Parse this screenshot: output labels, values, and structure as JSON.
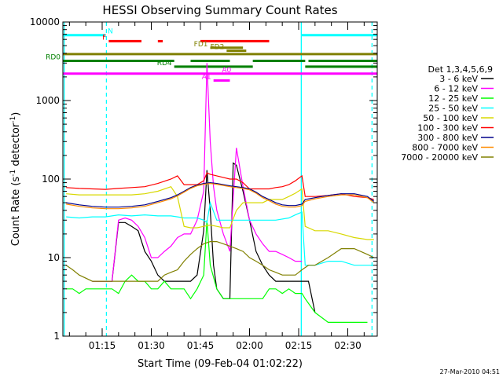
{
  "chart_data": {
    "type": "line",
    "title": "HESSI Observing Summary Count Rates",
    "xlabel": "Start Time (09-Feb-04 01:02:22)",
    "ylabel_main": "Count Rate (s",
    "ylabel_sup1": "-1",
    "ylabel_mid": " detector",
    "ylabel_sup2": "-1",
    "ylabel_end": ")",
    "yscale": "log",
    "ylim": [
      1,
      10000
    ],
    "xlim_minutes": [
      63.0,
      159.0
    ],
    "y_ticks": [
      {
        "value": 1,
        "label": "1"
      },
      {
        "value": 10,
        "label": "10"
      },
      {
        "value": 100,
        "label": "100"
      },
      {
        "value": 1000,
        "label": "1000"
      },
      {
        "value": 10000,
        "label": "10000"
      }
    ],
    "x_ticks": [
      {
        "minute": 75,
        "label": "01:15"
      },
      {
        "minute": 90,
        "label": "01:30"
      },
      {
        "minute": 105,
        "label": "01:45"
      },
      {
        "minute": 120,
        "label": "02:00"
      },
      {
        "minute": 135,
        "label": "02:15"
      },
      {
        "minute": 150,
        "label": "02:30"
      }
    ],
    "legend_title": "Det 1,3,4,5,6,9",
    "legend_position": "right",
    "series": [
      {
        "name": "3 - 6 keV",
        "color": "#000000",
        "x": [
          72,
          74,
          76,
          78,
          80,
          82,
          84,
          86,
          88,
          90,
          92,
          94,
          96,
          98,
          100,
          102,
          104,
          106,
          107,
          108,
          109,
          110,
          112,
          114,
          115,
          116,
          118,
          120,
          122,
          124,
          126,
          128,
          130,
          132,
          134,
          136,
          138,
          140
        ],
        "values": [
          5,
          5,
          5,
          5,
          28,
          28,
          25,
          22,
          12,
          9,
          6,
          5,
          5,
          5,
          5,
          5,
          6,
          22,
          130,
          40,
          8,
          4,
          3,
          3,
          160,
          150,
          70,
          30,
          12,
          8,
          6,
          5,
          5,
          5,
          5,
          5,
          5,
          2
        ]
      },
      {
        "name": "6 - 12 keV",
        "color": "#ff00ff",
        "x": [
          72,
          74,
          76,
          78,
          80,
          82,
          84,
          86,
          88,
          90,
          92,
          94,
          96,
          98,
          100,
          102,
          104,
          106,
          107,
          108,
          109,
          110,
          112,
          114,
          116,
          118,
          120,
          122,
          124,
          126,
          128,
          130,
          132,
          134,
          136
        ],
        "values": [
          5,
          5,
          5,
          5,
          30,
          32,
          30,
          25,
          18,
          10,
          10,
          12,
          14,
          18,
          20,
          20,
          30,
          70,
          3000,
          300,
          80,
          40,
          20,
          12,
          250,
          80,
          30,
          20,
          15,
          12,
          12,
          11,
          10,
          9,
          9
        ]
      },
      {
        "name": "12 - 25 keV",
        "color": "#00ff00",
        "x": [
          64,
          66,
          68,
          70,
          72,
          74,
          76,
          78,
          80,
          82,
          84,
          86,
          88,
          90,
          92,
          94,
          96,
          98,
          100,
          102,
          104,
          106,
          107,
          108,
          110,
          112,
          114,
          116,
          118,
          120,
          122,
          124,
          126,
          128,
          130,
          132,
          134,
          136,
          137,
          140,
          144,
          148,
          152,
          156
        ],
        "values": [
          4,
          4,
          3.5,
          4,
          4,
          4,
          4,
          4,
          3.5,
          5,
          6,
          5,
          5,
          4,
          4,
          5,
          4,
          4,
          4,
          3,
          4,
          6,
          30,
          8,
          4,
          3,
          3,
          3,
          3,
          3,
          3,
          3,
          4,
          4,
          3.5,
          4,
          3.5,
          3.5,
          3,
          2,
          1.5,
          1.5,
          1.5,
          1.5
        ]
      },
      {
        "name": "25 - 50 keV",
        "color": "#00ffff",
        "x": [
          64,
          68,
          72,
          76,
          80,
          84,
          88,
          92,
          96,
          98,
          100,
          104,
          106,
          107,
          108,
          110,
          112,
          114,
          116,
          118,
          120,
          124,
          128,
          132,
          134,
          136,
          137,
          140,
          144,
          148,
          152,
          156,
          158
        ],
        "values": [
          33,
          32,
          33,
          33,
          35,
          34,
          35,
          34,
          34,
          33,
          32,
          32,
          30,
          28,
          50,
          30,
          30,
          30,
          30,
          30,
          30,
          30,
          30,
          32,
          35,
          38,
          8,
          8,
          9,
          9,
          8,
          8,
          8
        ]
      },
      {
        "name": "50 - 100 keV",
        "color": "#d8d800",
        "x": [
          64,
          68,
          72,
          76,
          80,
          84,
          88,
          92,
          96,
          98,
          100,
          102,
          104,
          106,
          108,
          110,
          112,
          114,
          116,
          118,
          120,
          122,
          124,
          126,
          128,
          130,
          132,
          134,
          136,
          137,
          140,
          144,
          148,
          152,
          156,
          158
        ],
        "values": [
          65,
          63,
          63,
          63,
          63,
          63,
          65,
          70,
          80,
          60,
          25,
          24,
          24,
          25,
          26,
          25,
          24,
          24,
          40,
          50,
          50,
          50,
          50,
          55,
          55,
          55,
          60,
          66,
          75,
          25,
          22,
          22,
          20,
          18,
          17,
          17
        ]
      },
      {
        "name": "100 - 300 keV",
        "color": "#ff0000",
        "x": [
          64,
          68,
          72,
          76,
          80,
          84,
          88,
          92,
          96,
          98,
          100,
          102,
          104,
          106,
          107,
          108,
          110,
          112,
          114,
          116,
          118,
          120,
          122,
          124,
          126,
          128,
          130,
          132,
          134,
          136,
          137,
          140,
          144,
          148,
          152,
          156,
          158
        ],
        "values": [
          78,
          76,
          75,
          74,
          76,
          78,
          80,
          88,
          100,
          110,
          85,
          85,
          85,
          95,
          120,
          115,
          110,
          105,
          100,
          100,
          90,
          75,
          75,
          75,
          75,
          78,
          80,
          85,
          95,
          110,
          60,
          60,
          62,
          65,
          60,
          58,
          55
        ]
      },
      {
        "name": "300 - 800 keV",
        "color": "#00008b",
        "x": [
          64,
          68,
          72,
          76,
          80,
          84,
          88,
          92,
          96,
          98,
          100,
          102,
          104,
          106,
          108,
          110,
          112,
          114,
          116,
          118,
          120,
          122,
          124,
          126,
          128,
          130,
          132,
          134,
          136,
          137,
          140,
          144,
          148,
          152,
          156,
          158
        ],
        "values": [
          50,
          47,
          45,
          44,
          44,
          45,
          47,
          52,
          58,
          63,
          70,
          78,
          84,
          88,
          90,
          88,
          85,
          82,
          80,
          78,
          75,
          68,
          60,
          55,
          50,
          47,
          46,
          46,
          48,
          55,
          58,
          62,
          65,
          65,
          60,
          52
        ]
      },
      {
        "name": "800 - 7000 keV",
        "color": "#ff8c00",
        "x": [
          64,
          68,
          72,
          76,
          80,
          84,
          88,
          92,
          96,
          98,
          100,
          102,
          104,
          106,
          108,
          110,
          112,
          114,
          116,
          118,
          120,
          122,
          124,
          126,
          128,
          130,
          132,
          134,
          136,
          137,
          140,
          144,
          148,
          152,
          156,
          158
        ],
        "values": [
          48,
          45,
          43,
          42,
          42,
          43,
          45,
          50,
          56,
          61,
          68,
          76,
          82,
          86,
          88,
          86,
          83,
          80,
          78,
          76,
          73,
          66,
          58,
          53,
          48,
          45,
          44,
          44,
          46,
          52,
          56,
          60,
          63,
          63,
          58,
          50
        ]
      },
      {
        "name": "7000 - 20000 keV",
        "color": "#808000",
        "x": [
          64,
          66,
          68,
          72,
          76,
          80,
          84,
          88,
          90,
          92,
          94,
          96,
          98,
          100,
          102,
          104,
          106,
          108,
          110,
          112,
          114,
          116,
          118,
          120,
          122,
          124,
          126,
          128,
          130,
          132,
          134,
          136,
          138,
          140,
          144,
          148,
          152,
          156,
          158
        ],
        "values": [
          8,
          7,
          6,
          5,
          5,
          5,
          5,
          5,
          5,
          5,
          6,
          6.5,
          7,
          9,
          11,
          13,
          15,
          16,
          16,
          15,
          14,
          13,
          12,
          10,
          9,
          8,
          7,
          6.5,
          6,
          6,
          6,
          7,
          8,
          8,
          10,
          13,
          13,
          11,
          10
        ]
      }
    ],
    "flag_bars": [
      {
        "label": "N",
        "color": "#00ffff",
        "y": 6800,
        "segments": [
          [
            63,
            76
          ],
          [
            135.8,
            159
          ]
        ]
      },
      {
        "label": "F",
        "color": "#ff0000",
        "y": 5700,
        "segments": [
          [
            77,
            87
          ],
          [
            92,
            93.5
          ],
          [
            105,
            126
          ]
        ]
      },
      {
        "label": "FD1",
        "color": "#808000",
        "y": 4700,
        "segments": [
          [
            108,
            118
          ]
        ]
      },
      {
        "label": "FD2",
        "color": "#808000",
        "y": 4300,
        "segments": [
          [
            113,
            119
          ]
        ]
      },
      {
        "label": "",
        "color": "#808000",
        "y": 3900,
        "segments": [
          [
            63,
            159
          ]
        ]
      },
      {
        "label": "RD0",
        "color": "#008000",
        "y": 3200,
        "segments": [
          [
            63,
            97
          ],
          [
            102,
            114
          ],
          [
            121,
            137
          ],
          [
            138,
            159
          ]
        ]
      },
      {
        "label": "RD4",
        "color": "#008000",
        "y": 2700,
        "segments": [
          [
            97,
            121
          ],
          [
            137,
            159
          ]
        ]
      },
      {
        "label": "A0",
        "color": "#ff00ff",
        "y": 2200,
        "segments": [
          [
            63,
            159
          ]
        ]
      },
      {
        "label": "A1",
        "color": "#ff00ff",
        "y": 1800,
        "segments": [
          [
            109,
            114
          ]
        ]
      }
    ],
    "vlines": [
      {
        "minute": 63.4,
        "color": "#00ffff",
        "style": "solid"
      },
      {
        "minute": 76.3,
        "color": "#00ffff",
        "style": "dashed"
      },
      {
        "minute": 135.8,
        "color": "#00ffff",
        "style": "solid"
      },
      {
        "minute": 157.4,
        "color": "#00ffff",
        "style": "dashed"
      }
    ],
    "timestamp": "27-Mar-2010 04:51"
  }
}
